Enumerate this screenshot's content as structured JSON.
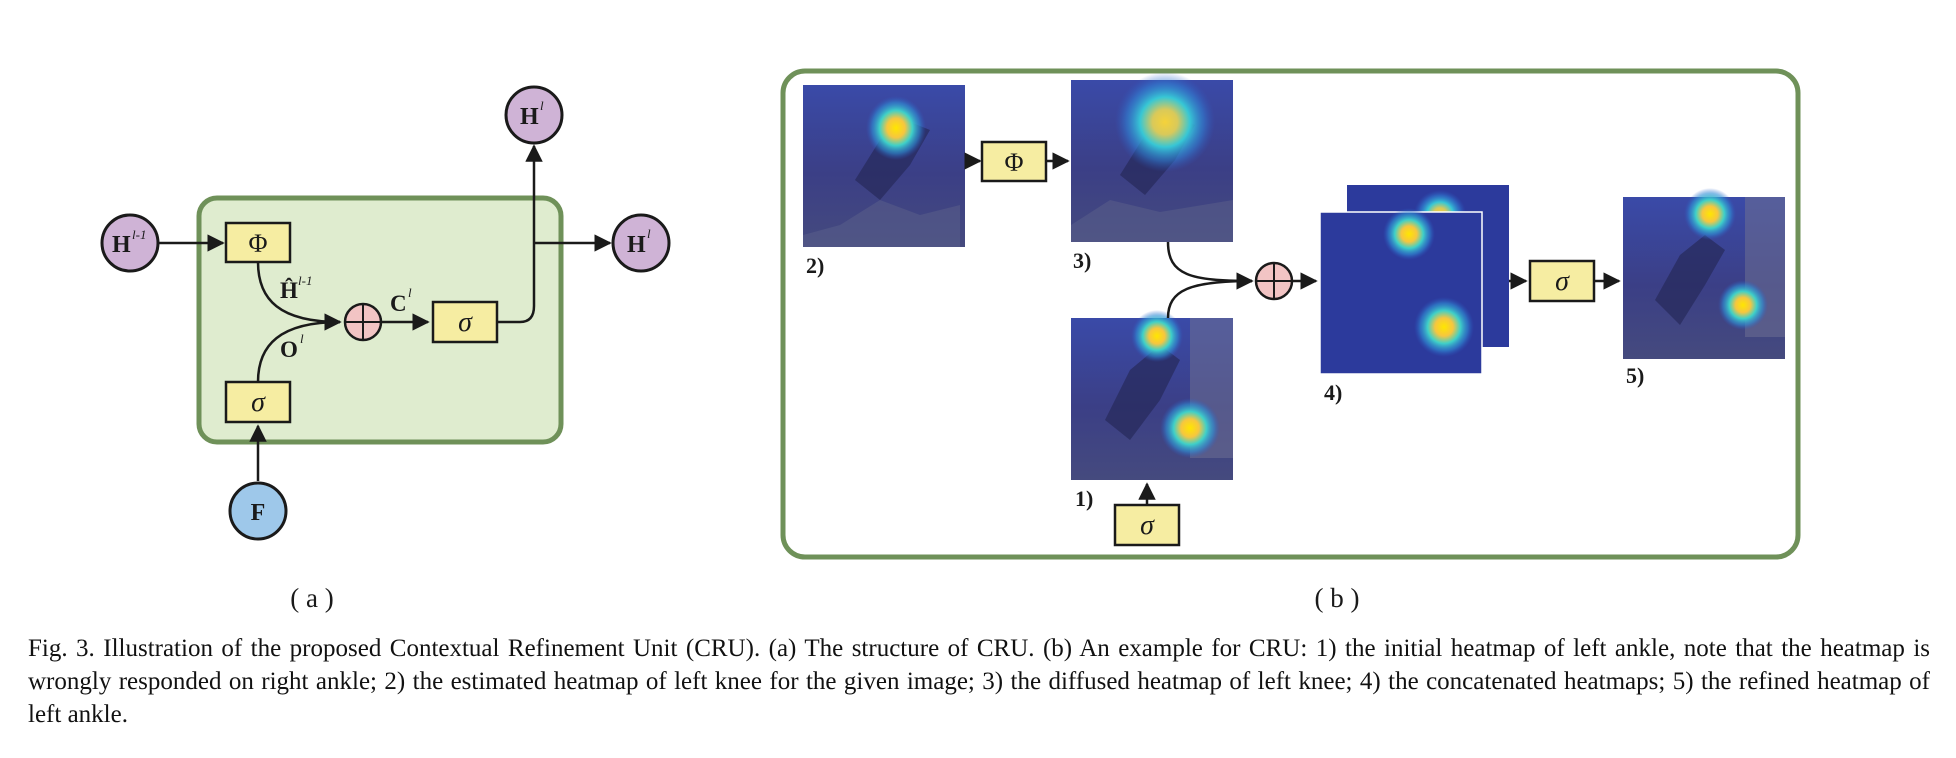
{
  "panel_a": {
    "caption_label": "( a )",
    "nodes": {
      "h_prev": {
        "base": "H",
        "sup": "l-1"
      },
      "h_out_top": {
        "base": "H",
        "sup": "l"
      },
      "h_out_right": {
        "base": "H",
        "sup": "l"
      },
      "f": "F"
    },
    "ops": {
      "phi": "Φ",
      "sigma_gate": "σ",
      "sigma_out": "σ"
    },
    "edge_labels": {
      "h_hat": {
        "base": "Ĥ",
        "sup": "l-1"
      },
      "o": {
        "base": "O",
        "sup": "l"
      },
      "c": {
        "base": "C",
        "sup": "l"
      }
    }
  },
  "panel_b": {
    "caption_label": "( b )",
    "ops": {
      "phi": "Φ",
      "sigma_in": "σ",
      "sigma_out": "σ"
    },
    "step_labels": [
      "1)",
      "2)",
      "3)",
      "4)",
      "5)"
    ]
  },
  "caption": "Fig. 3.  Illustration of the proposed Contextual Refinement Unit (CRU). (a) The structure of CRU. (b) An example for CRU: 1) the initial heatmap of left ankle, note that the heatmap is wrongly responded on right ankle; 2) the estimated heatmap of left knee for the given image; 3) the diffused heatmap of left knee; 4) the concatenated heatmaps; 5) the refined heatmap of left ankle.",
  "colors": {
    "module_fill": "#dfeccf",
    "module_border": "#6f9159",
    "op_box": "#f6eda2",
    "h_node": "#cfb3d6",
    "f_node": "#9ec8ea",
    "plus_node": "#f2c4c4",
    "heatmap_bg": "#2c3a9c"
  }
}
